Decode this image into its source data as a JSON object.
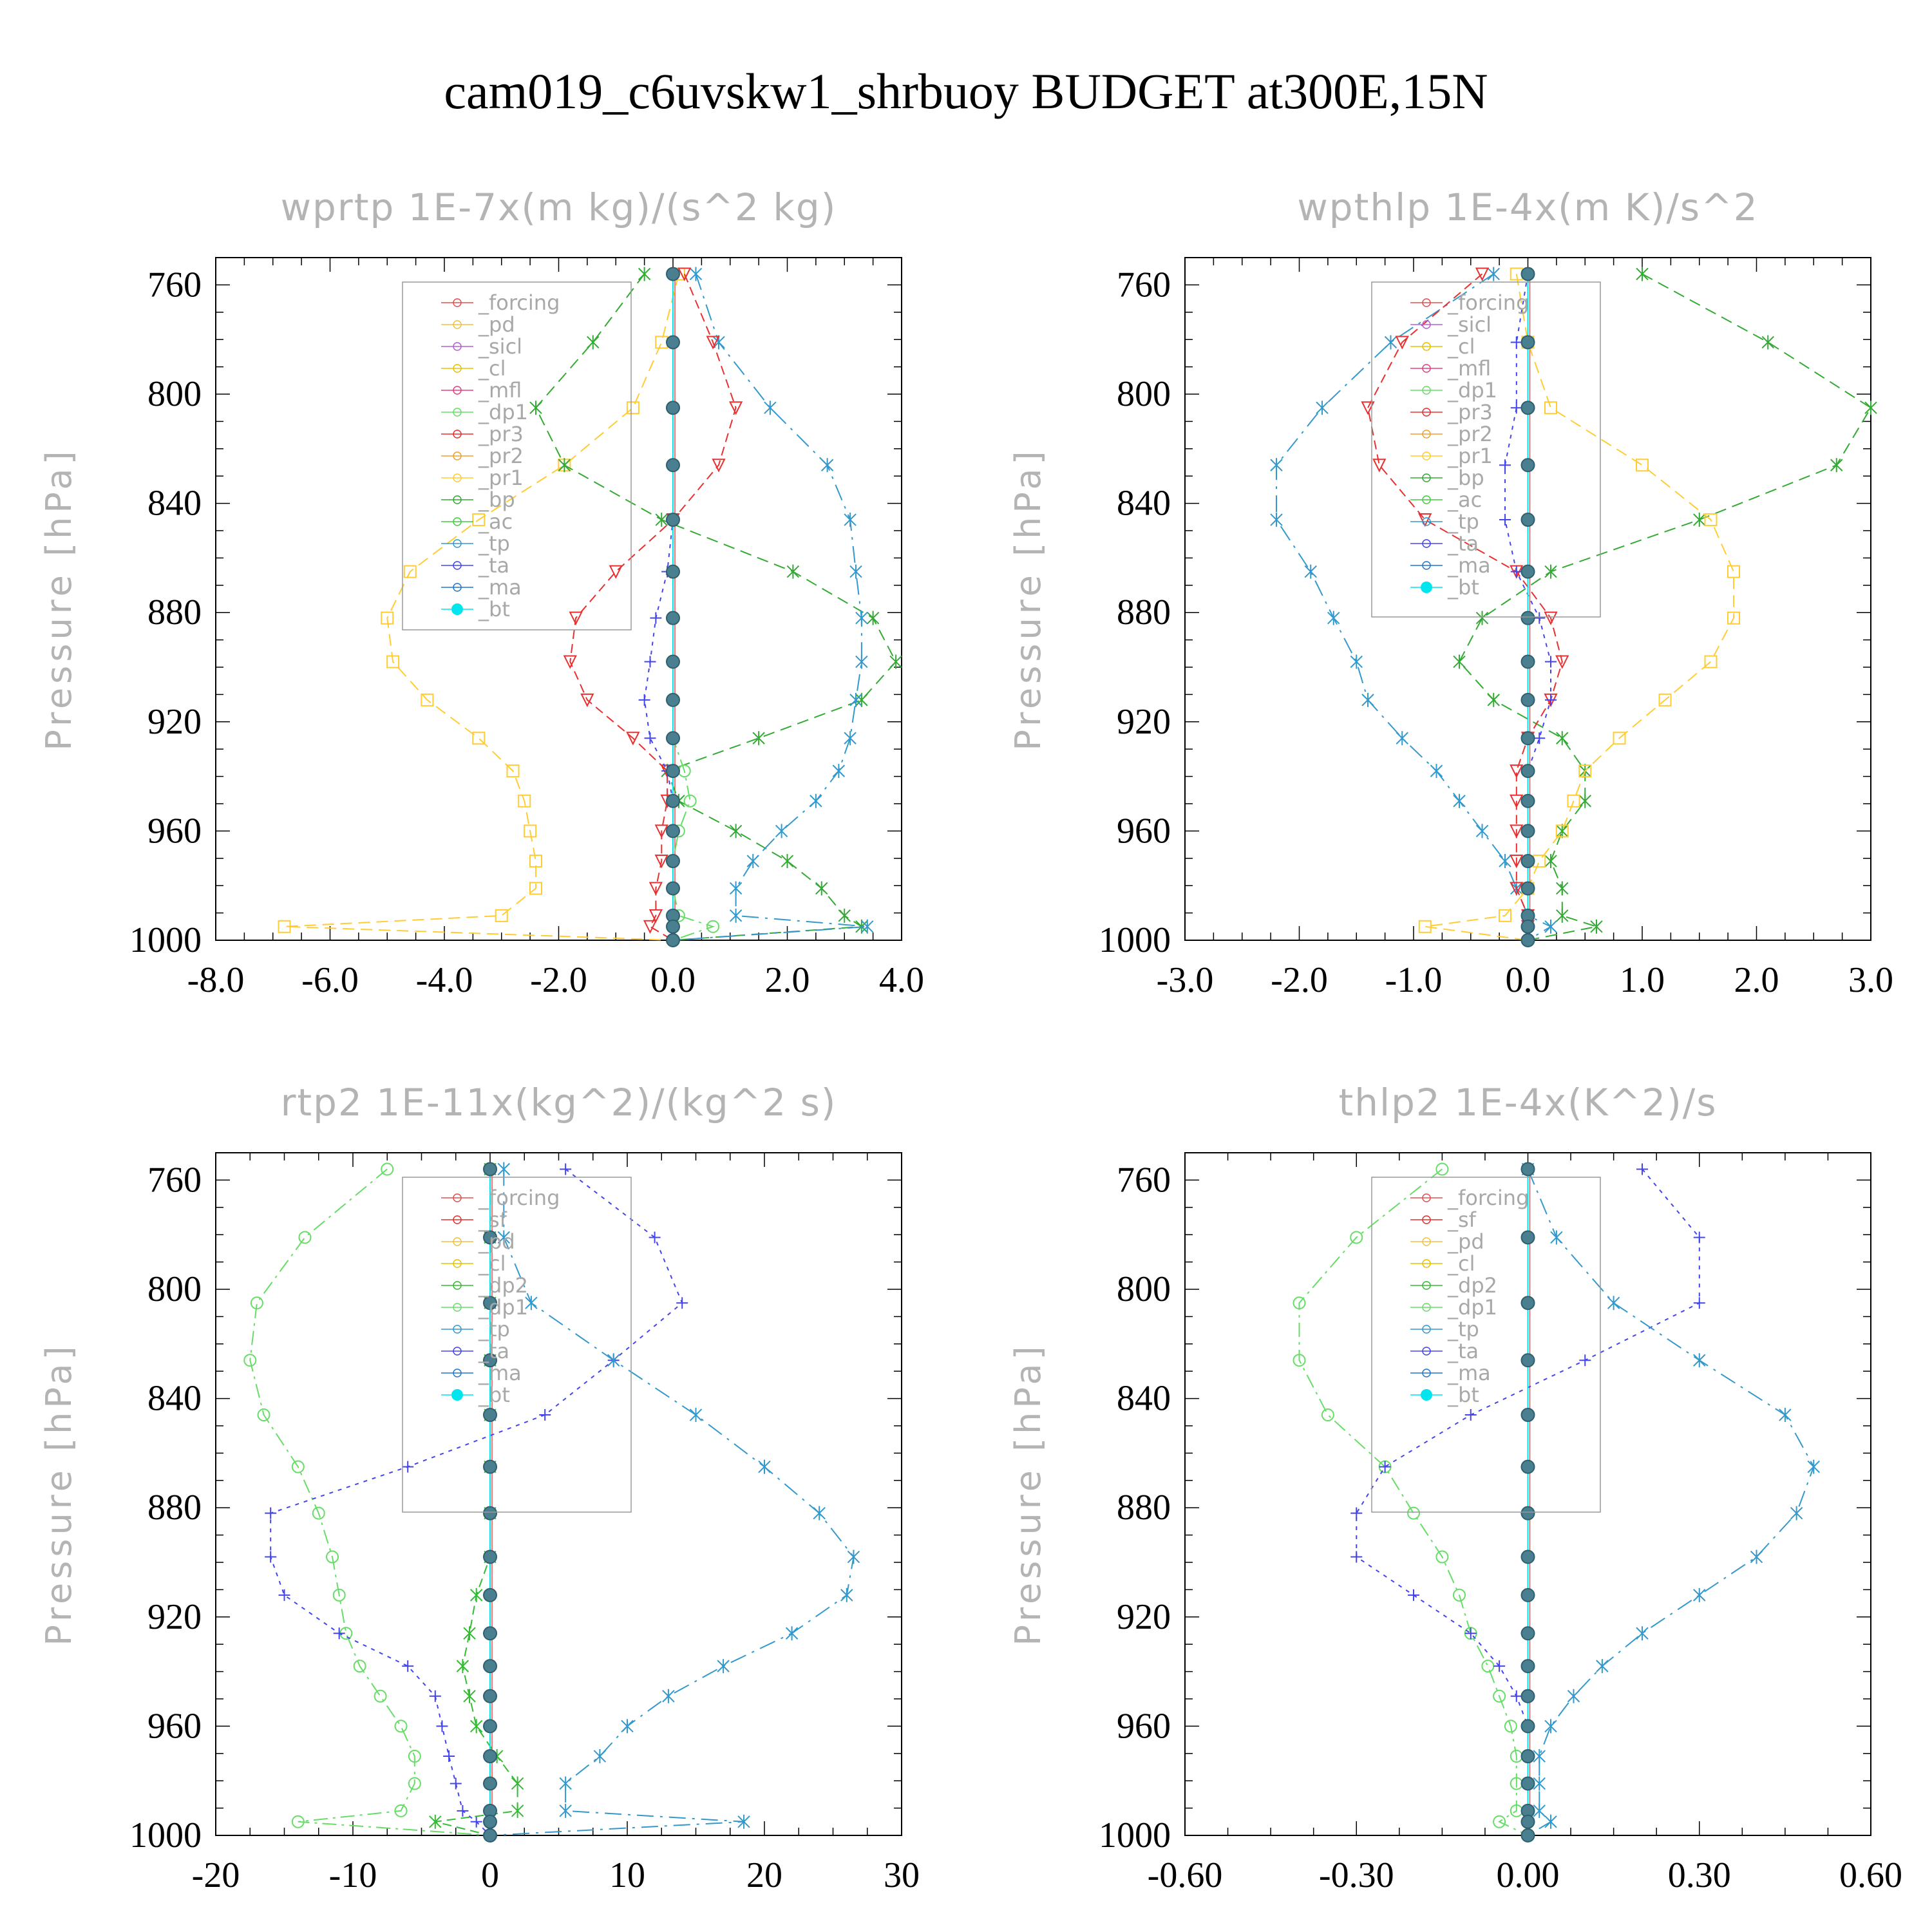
{
  "title": "cam019_c6uvskw1_shrbuoy  BUDGET at300E,15N",
  "colors": {
    "forcing": "#e05050",
    "pd": "#f0c040",
    "sicl": "#b060d0",
    "cl": "#e6c200",
    "mfl": "#e04080",
    "dp1": "#66dd66",
    "dp2": "#33bb33",
    "pr3": "#e83030",
    "pr2": "#f0a030",
    "pr1": "#ffcc33",
    "bp": "#33aa33",
    "ac": "#44cc44",
    "tp": "#3399cc",
    "ta": "#4444ee",
    "ma": "#2277cc",
    "bt": "#00e5ee",
    "sf": "#e03030"
  },
  "chart_data": [
    {
      "type": "line",
      "title": "wprtp  1E-7x(m kg)/(s^2 kg)",
      "ylabel": "Pressure [hPa]",
      "xlim": [
        -8,
        4
      ],
      "ylim": [
        1000,
        750
      ],
      "xticks": [
        "-8.0",
        "-6.0",
        "-4.0",
        "-2.0",
        "0.0",
        "2.0",
        "4.0"
      ],
      "xtick_values": [
        -8,
        -6,
        -4,
        -2,
        0,
        2,
        4
      ],
      "yticks": [
        "760",
        "800",
        "840",
        "880",
        "920",
        "960",
        "1000"
      ],
      "ytick_values": [
        760,
        800,
        840,
        880,
        920,
        960,
        1000
      ],
      "legend": [
        "_forcing",
        "_pd",
        "_sicl",
        "_cl",
        "_mfl",
        "_dp1",
        "_pr3",
        "_pr2",
        "_pr1",
        "_bp",
        "_ac",
        "_tp",
        "_ta",
        "_ma",
        "_bt"
      ],
      "pressure": [
        756,
        781,
        805,
        826,
        846,
        865,
        882,
        898,
        912,
        926,
        938,
        949,
        960,
        971,
        981,
        991,
        995,
        1000
      ],
      "series": [
        {
          "name": "_pr1",
          "key": "pr1",
          "values": [
            0.1,
            -0.2,
            -0.7,
            -1.9,
            -3.4,
            -4.6,
            -5.0,
            -4.9,
            -4.3,
            -3.4,
            -2.8,
            -2.6,
            -2.5,
            -2.4,
            -2.4,
            -3.0,
            -6.8,
            0.0
          ]
        },
        {
          "name": "_bp",
          "key": "bp",
          "values": [
            -0.5,
            -1.4,
            -2.4,
            -1.9,
            -0.2,
            2.1,
            3.5,
            3.9,
            3.3,
            1.5,
            -0.1,
            0.1,
            1.1,
            2.0,
            2.6,
            3.0,
            3.3,
            0.0
          ]
        },
        {
          "name": "_tp",
          "key": "tp",
          "values": [
            0.4,
            0.8,
            1.7,
            2.7,
            3.1,
            3.2,
            3.3,
            3.3,
            3.2,
            3.1,
            2.9,
            2.5,
            1.9,
            1.4,
            1.1,
            1.1,
            3.4,
            0.0
          ]
        },
        {
          "name": "_pr3",
          "key": "pr3",
          "values": [
            0.2,
            0.7,
            1.1,
            0.8,
            0.0,
            -1.0,
            -1.7,
            -1.8,
            -1.5,
            -0.7,
            -0.1,
            -0.1,
            -0.2,
            -0.2,
            -0.3,
            -0.3,
            -0.4,
            0.0
          ]
        },
        {
          "name": "_ta",
          "key": "ta",
          "values": [
            0.0,
            0.0,
            0.0,
            0.0,
            0.0,
            -0.1,
            -0.3,
            -0.4,
            -0.5,
            -0.4,
            -0.1,
            0.0,
            0.0,
            0.0,
            0.0,
            0.0,
            0.0,
            0.0
          ]
        },
        {
          "name": "_dp1",
          "key": "dp1",
          "values": [
            0.0,
            0.0,
            0.0,
            0.0,
            0.0,
            0.0,
            0.0,
            0.0,
            0.0,
            0.0,
            0.2,
            0.3,
            0.1,
            0.0,
            0.0,
            0.1,
            0.7,
            0.0
          ]
        },
        {
          "name": "_bt",
          "key": "bt",
          "values": [
            0,
            0,
            0,
            0,
            0,
            0,
            0,
            0,
            0,
            0,
            0,
            0,
            0,
            0,
            0,
            0,
            0,
            0
          ]
        }
      ]
    },
    {
      "type": "line",
      "title": "wpthlp  1E-4x(m K)/s^2",
      "ylabel": "Pressure [hPa]",
      "xlim": [
        -3,
        3
      ],
      "ylim": [
        1000,
        750
      ],
      "xticks": [
        "-3.0",
        "-2.0",
        "-1.0",
        "0.0",
        "1.0",
        "2.0",
        "3.0"
      ],
      "xtick_values": [
        -3,
        -2,
        -1,
        0,
        1,
        2,
        3
      ],
      "yticks": [
        "760",
        "800",
        "840",
        "880",
        "920",
        "960",
        "1000"
      ],
      "ytick_values": [
        760,
        800,
        840,
        880,
        920,
        960,
        1000
      ],
      "legend": [
        "_forcing",
        "_sicl",
        "_cl",
        "_mfl",
        "_dp1",
        "_pr3",
        "_pr2",
        "_pr1",
        "_bp",
        "_ac",
        "_tp",
        "_ta",
        "_ma",
        "_bt"
      ],
      "pressure": [
        756,
        781,
        805,
        826,
        846,
        865,
        882,
        898,
        912,
        926,
        938,
        949,
        960,
        971,
        981,
        991,
        995,
        1000
      ],
      "series": [
        {
          "name": "_tp",
          "key": "tp",
          "values": [
            -0.3,
            -1.2,
            -1.8,
            -2.2,
            -2.2,
            -1.9,
            -1.7,
            -1.5,
            -1.4,
            -1.1,
            -0.8,
            -0.6,
            -0.4,
            -0.2,
            -0.1,
            0.0,
            0.2,
            0.0
          ]
        },
        {
          "name": "_bp",
          "key": "bp",
          "values": [
            1.0,
            2.1,
            3.0,
            2.7,
            1.5,
            0.2,
            -0.4,
            -0.6,
            -0.3,
            0.3,
            0.5,
            0.5,
            0.3,
            0.2,
            0.3,
            0.3,
            0.6,
            0.0
          ]
        },
        {
          "name": "_pr1",
          "key": "pr1",
          "values": [
            -0.1,
            0.0,
            0.2,
            1.0,
            1.6,
            1.8,
            1.8,
            1.6,
            1.2,
            0.8,
            0.5,
            0.4,
            0.3,
            0.1,
            0.0,
            -0.2,
            -0.9,
            0.0
          ]
        },
        {
          "name": "_pr3",
          "key": "pr3",
          "values": [
            -0.4,
            -1.1,
            -1.4,
            -1.3,
            -0.9,
            -0.1,
            0.2,
            0.3,
            0.2,
            0.0,
            -0.1,
            -0.1,
            -0.1,
            -0.1,
            -0.1,
            0.0,
            0.0,
            0.0
          ]
        },
        {
          "name": "_ta",
          "key": "ta",
          "values": [
            0.0,
            -0.1,
            -0.1,
            -0.2,
            -0.2,
            -0.1,
            0.1,
            0.2,
            0.2,
            0.1,
            0.0,
            0.0,
            0.0,
            0.0,
            0.0,
            0.0,
            0.0,
            0.0
          ]
        },
        {
          "name": "_bt",
          "key": "bt",
          "values": [
            0,
            0,
            0,
            0,
            0,
            0,
            0,
            0,
            0,
            0,
            0,
            0,
            0,
            0,
            0,
            0,
            0,
            0
          ]
        }
      ]
    },
    {
      "type": "line",
      "title": "rtp2  1E-11x(kg^2)/(kg^2 s)",
      "ylabel": "Pressure [hPa]",
      "xlim": [
        -20,
        30
      ],
      "ylim": [
        1000,
        750
      ],
      "xticks": [
        "-20",
        "-10",
        "0",
        "10",
        "20",
        "30"
      ],
      "xtick_values": [
        -20,
        -10,
        0,
        10,
        20,
        30
      ],
      "yticks": [
        "760",
        "800",
        "840",
        "880",
        "920",
        "960",
        "1000"
      ],
      "ytick_values": [
        760,
        800,
        840,
        880,
        920,
        960,
        1000
      ],
      "legend": [
        "_forcing",
        "_sf",
        "_pd",
        "_cl",
        "_dp2",
        "_dp1",
        "_tp",
        "_ta",
        "_ma",
        "_bt"
      ],
      "pressure": [
        756,
        781,
        805,
        826,
        846,
        865,
        882,
        898,
        912,
        926,
        938,
        949,
        960,
        971,
        981,
        991,
        995,
        1000
      ],
      "series": [
        {
          "name": "_dp1",
          "key": "dp1",
          "values": [
            -7.5,
            -13.5,
            -17.0,
            -17.5,
            -16.5,
            -14.0,
            -12.5,
            -11.5,
            -11.0,
            -10.5,
            -9.5,
            -8.0,
            -6.5,
            -5.5,
            -5.5,
            -6.5,
            -14.0,
            0.0
          ]
        },
        {
          "name": "_ta",
          "key": "ta",
          "values": [
            5.5,
            12.0,
            14.0,
            9.0,
            4.0,
            -6.0,
            -16.0,
            -16.0,
            -15.0,
            -11.0,
            -6.0,
            -4.0,
            -3.5,
            -3.0,
            -2.5,
            -2.0,
            -1.0,
            0.0
          ]
        },
        {
          "name": "_tp",
          "key": "tp",
          "values": [
            1.0,
            1.0,
            3.0,
            9.0,
            15.0,
            20.0,
            24.0,
            26.5,
            26.0,
            22.0,
            17.0,
            13.0,
            10.0,
            8.0,
            5.5,
            5.5,
            18.5,
            0.0
          ]
        },
        {
          "name": "_dp2",
          "key": "dp2",
          "values": [
            0.0,
            0.0,
            0.0,
            0.0,
            0.0,
            0.0,
            0.0,
            0.0,
            -1.0,
            -1.5,
            -2.0,
            -1.5,
            -1.0,
            0.5,
            2.0,
            2.0,
            -4.0,
            0.0
          ]
        },
        {
          "name": "_bt",
          "key": "bt",
          "values": [
            0,
            0,
            0,
            0,
            0,
            0,
            0,
            0,
            0,
            0,
            0,
            0,
            0,
            0,
            0,
            0,
            0,
            0
          ]
        }
      ]
    },
    {
      "type": "line",
      "title": "thlp2  1E-4x(K^2)/s",
      "ylabel": "Pressure [hPa]",
      "xlim": [
        -0.6,
        0.6
      ],
      "ylim": [
        1000,
        750
      ],
      "xticks": [
        "-0.60",
        "-0.30",
        "0.00",
        "0.30",
        "0.60"
      ],
      "xtick_values": [
        -0.6,
        -0.3,
        0,
        0.3,
        0.6
      ],
      "yticks": [
        "760",
        "800",
        "840",
        "880",
        "920",
        "960",
        "1000"
      ],
      "ytick_values": [
        760,
        800,
        840,
        880,
        920,
        960,
        1000
      ],
      "legend": [
        "_forcing",
        "_sf",
        "_pd",
        "_cl",
        "_dp2",
        "_dp1",
        "_tp",
        "_ta",
        "_ma",
        "_bt"
      ],
      "pressure": [
        756,
        781,
        805,
        826,
        846,
        865,
        882,
        898,
        912,
        926,
        938,
        949,
        960,
        971,
        981,
        991,
        995,
        1000
      ],
      "series": [
        {
          "name": "_dp1",
          "key": "dp1",
          "values": [
            -0.15,
            -0.3,
            -0.4,
            -0.4,
            -0.35,
            -0.25,
            -0.2,
            -0.15,
            -0.12,
            -0.1,
            -0.07,
            -0.05,
            -0.03,
            -0.02,
            -0.02,
            -0.02,
            -0.05,
            0.0
          ]
        },
        {
          "name": "_ta",
          "key": "ta",
          "values": [
            0.2,
            0.3,
            0.3,
            0.1,
            -0.1,
            -0.25,
            -0.3,
            -0.3,
            -0.2,
            -0.1,
            -0.05,
            -0.02,
            0.0,
            0.0,
            0.0,
            0.0,
            0.0,
            0.0
          ]
        },
        {
          "name": "_tp",
          "key": "tp",
          "values": [
            0.0,
            0.05,
            0.15,
            0.3,
            0.45,
            0.5,
            0.47,
            0.4,
            0.3,
            0.2,
            0.13,
            0.08,
            0.04,
            0.02,
            0.02,
            0.02,
            0.04,
            0.0
          ]
        },
        {
          "name": "_bt",
          "key": "bt",
          "values": [
            0,
            0,
            0,
            0,
            0,
            0,
            0,
            0,
            0,
            0,
            0,
            0,
            0,
            0,
            0,
            0,
            0,
            0
          ]
        }
      ]
    }
  ]
}
